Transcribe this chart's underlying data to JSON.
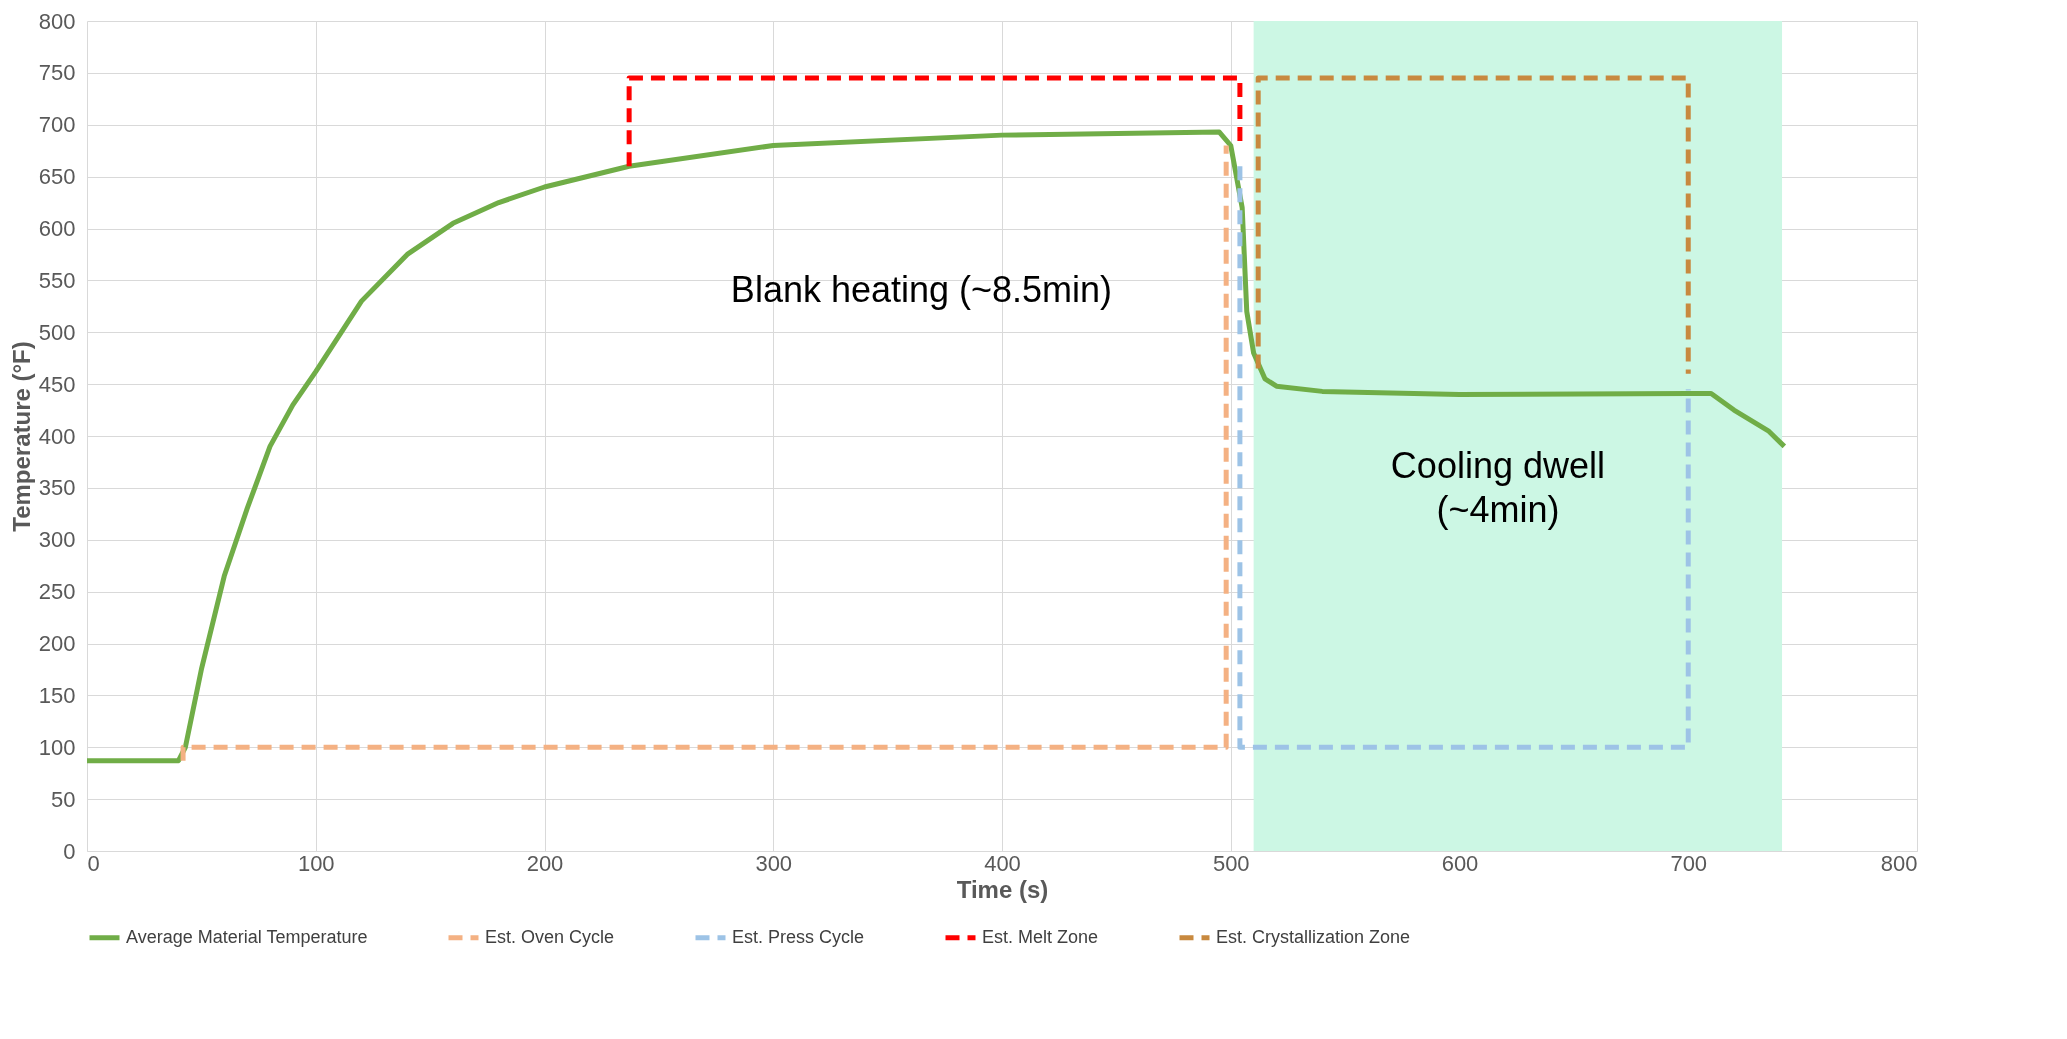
{
  "chart_data": {
    "type": "line",
    "xlabel": "Time (s)",
    "ylabel": "Temperature (°F)",
    "xlim": [
      0,
      800
    ],
    "xticks": [
      0,
      100,
      200,
      300,
      400,
      500,
      600,
      700,
      800
    ],
    "ylim": [
      0,
      800
    ],
    "yticks": [
      0,
      50,
      100,
      150,
      200,
      250,
      300,
      350,
      400,
      450,
      500,
      550,
      600,
      650,
      700,
      750,
      800
    ],
    "grid": true,
    "legend": "bottom",
    "marker": "none",
    "series": [
      {
        "name": "Average Material Temperature",
        "color": "#70ad47",
        "line_style": "solid",
        "x": [
          0,
          40,
          43,
          50,
          60,
          70,
          80,
          90,
          100,
          120,
          140,
          160,
          180,
          200,
          237,
          300,
          400,
          495,
          500,
          505,
          507,
          510,
          515,
          520,
          540,
          600,
          700,
          710,
          720,
          735,
          742
        ],
        "values": [
          87,
          87,
          100,
          175,
          265,
          330,
          390,
          430,
          462,
          530,
          575,
          605,
          625,
          640,
          660,
          680,
          690,
          693,
          680,
          620,
          520,
          480,
          455,
          448,
          443,
          440,
          441,
          441,
          425,
          405,
          390
        ]
      },
      {
        "name": "Est. Oven Cycle",
        "color": "#f4b183",
        "line_style": "dashed",
        "x": [
          42,
          42,
          498,
          498
        ],
        "values": [
          87,
          100,
          100,
          680
        ]
      },
      {
        "name": "Est. Press Cycle",
        "color": "#9dc3e6",
        "line_style": "dashed",
        "x": [
          504,
          504,
          700,
          700
        ],
        "values": [
          660,
          100,
          100,
          445
        ]
      },
      {
        "name": "Est. Melt Zone",
        "color": "#ff0000",
        "line_style": "dashed",
        "x": [
          237,
          237,
          504,
          504
        ],
        "values": [
          660,
          745,
          745,
          680
        ]
      },
      {
        "name": "Est. Crystallization Zone",
        "color": "#c8893f",
        "line_style": "dashed",
        "x": [
          512,
          512,
          700,
          700
        ],
        "values": [
          465,
          745,
          745,
          460
        ]
      }
    ],
    "bands": [
      {
        "axis": "x",
        "from": 510,
        "to": 741,
        "color": "#ccf7e4"
      }
    ],
    "annotations": [
      "Blank heating (~8.5min)",
      "Cooling dwell\n(~4min)"
    ]
  }
}
